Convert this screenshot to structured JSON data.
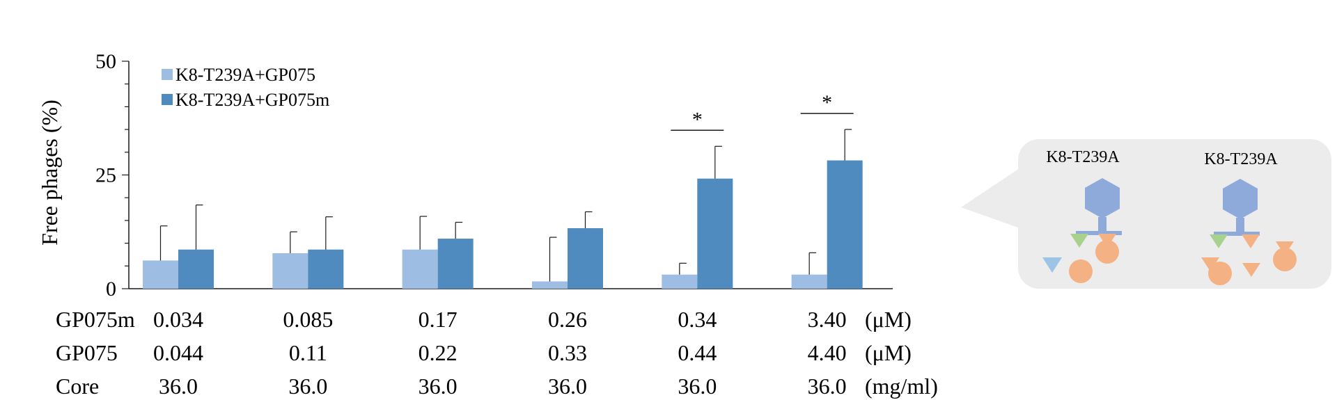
{
  "chart_data": {
    "type": "bar",
    "ylabel": "Free phages (%)",
    "ylim": [
      0,
      50
    ],
    "y_ticks": [
      0,
      25,
      50
    ],
    "grid": false,
    "legend_position": "top-left",
    "categories": [
      "0.034",
      "0.085",
      "0.17",
      "0.26",
      "0.34",
      "3.40"
    ],
    "series": [
      {
        "name": "K8-T239A+GP075",
        "color": "#9dbde2",
        "values": [
          6.2,
          7.8,
          8.6,
          1.6,
          3.1,
          3.1
        ],
        "errors": [
          7.6,
          4.7,
          7.3,
          9.7,
          2.5,
          4.8
        ]
      },
      {
        "name": "K8-T239A+GP075m",
        "color": "#4f8bbf",
        "values": [
          8.6,
          8.6,
          11.0,
          13.3,
          24.2,
          28.2
        ],
        "errors": [
          9.8,
          7.2,
          3.6,
          3.6,
          7.1,
          6.8
        ]
      }
    ],
    "significance": [
      {
        "category_index": 4,
        "label": "*"
      },
      {
        "category_index": 5,
        "label": "*"
      }
    ],
    "table_rows": [
      {
        "label": "GP075m",
        "values": [
          "0.034",
          "0.085",
          "0.17",
          "0.26",
          "0.34",
          "3.40"
        ],
        "unit": "(μM)"
      },
      {
        "label": "GP075",
        "values": [
          "0.044",
          "0.11",
          "0.22",
          "0.33",
          "0.44",
          "4.40"
        ],
        "unit": "(μM)"
      },
      {
        "label": "Core",
        "values": [
          "36.0",
          "36.0",
          "36.0",
          "36.0",
          "36.0",
          "36.0"
        ],
        "unit": "(mg/ml)"
      }
    ]
  },
  "diagram": {
    "labels": [
      "K8-T239A",
      "K8-T239A"
    ],
    "colors": {
      "panel": "#ececec",
      "antibody": "#8eaadb",
      "triangle_blue": "#9dc3e6",
      "triangle_green": "#a9d18e",
      "orange": "#f4b183"
    }
  }
}
